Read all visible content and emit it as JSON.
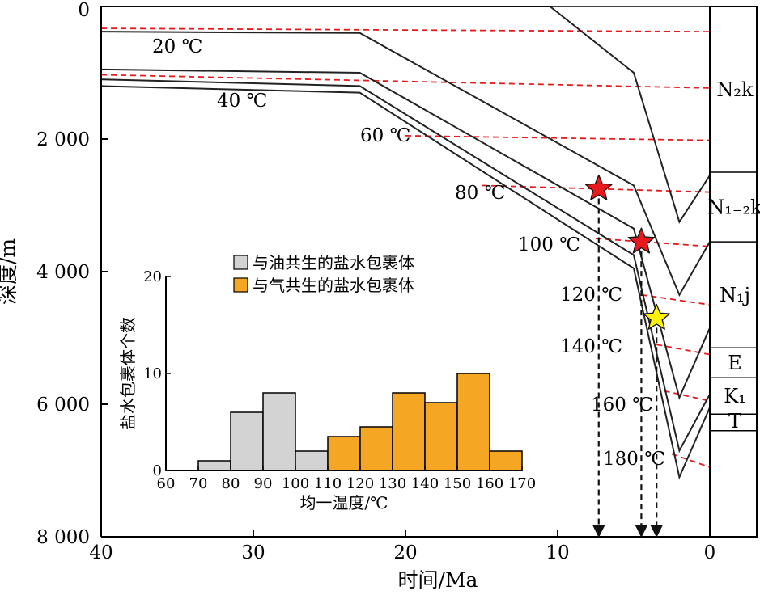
{
  "chart_data": [
    {
      "type": "line",
      "title": "",
      "xlabel": "时间/Ma",
      "ylabel": "深度/m",
      "xlim": [
        40,
        0
      ],
      "ylim": [
        8000,
        0
      ],
      "x_ticks": [
        "40",
        "30",
        "20",
        "10",
        "0"
      ],
      "x_tick_values": [
        40,
        30,
        20,
        10,
        0
      ],
      "y_ticks": [
        "0",
        "2 000",
        "4 000",
        "6 000",
        "8 000"
      ],
      "y_tick_values": [
        0,
        2000,
        4000,
        6000,
        8000
      ],
      "burial_curves": [
        {
          "points": [
            [
              40,
              0
            ],
            [
              10.5,
              0
            ],
            [
              5,
              1000
            ],
            [
              2,
              3250
            ],
            [
              0,
              2550
            ]
          ]
        },
        {
          "points": [
            [
              40,
              380
            ],
            [
              23,
              400
            ],
            [
              5,
              2700
            ],
            [
              2,
              4350
            ],
            [
              0,
              3550
            ]
          ]
        },
        {
          "points": [
            [
              40,
              950
            ],
            [
              23,
              1000
            ],
            [
              5,
              3350
            ],
            [
              2,
              5900
            ],
            [
              0,
              4850
            ]
          ]
        },
        {
          "points": [
            [
              40,
              1100
            ],
            [
              23,
              1200
            ],
            [
              5,
              3750
            ],
            [
              2,
              6700
            ],
            [
              0,
              5850
            ]
          ]
        },
        {
          "points": [
            [
              40,
              1200
            ],
            [
              23,
              1300
            ],
            [
              5,
              3950
            ],
            [
              2,
              7100
            ],
            [
              0,
              6050
            ]
          ]
        }
      ],
      "isotherms": [
        {
          "label": "20 ℃",
          "points": [
            [
              40,
              330
            ],
            [
              0,
              380
            ]
          ]
        },
        {
          "label": "40 ℃",
          "points": [
            [
              40,
              1030
            ],
            [
              0,
              1230
            ]
          ]
        },
        {
          "label": "60 ℃",
          "points": [
            [
              20,
              1950
            ],
            [
              0,
              2020
            ]
          ]
        },
        {
          "label": "80 ℃",
          "points": [
            [
              15,
              2700
            ],
            [
              0,
              2800
            ]
          ]
        },
        {
          "label": "100 ℃",
          "points": [
            [
              7.5,
              3500
            ],
            [
              0,
              3620
            ]
          ]
        },
        {
          "label": "120 ℃",
          "points": [
            [
              4.5,
              4350
            ],
            [
              0,
              4500
            ]
          ]
        },
        {
          "label": "140 ℃",
          "points": [
            [
              3.5,
              5100
            ],
            [
              0,
              5250
            ]
          ]
        },
        {
          "label": "160 ℃",
          "points": [
            [
              3,
              5800
            ],
            [
              0,
              5950
            ]
          ]
        },
        {
          "label": "180 ℃",
          "points": [
            [
              2.5,
              6750
            ],
            [
              0,
              6950
            ]
          ]
        }
      ],
      "markers": [
        {
          "color": "#e8191c",
          "x": 7.3,
          "y": 2750
        },
        {
          "color": "#e8191c",
          "x": 4.5,
          "y": 3550
        },
        {
          "color": "#fff200",
          "x": 3.5,
          "y": 4700
        }
      ],
      "formations": [
        {
          "label": "N₂k",
          "top": 0,
          "bottom": 2500
        },
        {
          "label": "N₁₋₂k",
          "top": 2500,
          "bottom": 3550
        },
        {
          "label": "N₁j",
          "top": 3550,
          "bottom": 5150
        },
        {
          "label": "E",
          "top": 5150,
          "bottom": 5600
        },
        {
          "label": "K₁",
          "top": 5600,
          "bottom": 6150
        },
        {
          "label": "T",
          "top": 6150,
          "bottom": 6400
        }
      ],
      "colors": {
        "curve": "#222222",
        "isotherm": "#e8191c",
        "arrow": "#111111"
      }
    },
    {
      "type": "bar",
      "title": "",
      "xlabel": "均一温度/℃",
      "ylabel": "盐水包裹体个数",
      "xlim": [
        60,
        170
      ],
      "ylim": [
        0,
        20
      ],
      "x_ticks": [
        "60",
        "70",
        "80",
        "90",
        "100",
        "110",
        "120",
        "130",
        "140",
        "150",
        "160",
        "170"
      ],
      "y_ticks": [
        "0",
        "10",
        "20"
      ],
      "legend_position": "top-right",
      "series": [
        {
          "name": "与油共生的盐水包裹体",
          "color": "#d3d3d3",
          "bins": [
            [
              70,
              80,
              1
            ],
            [
              80,
              90,
              6
            ],
            [
              90,
              100,
              8
            ],
            [
              100,
              110,
              2
            ]
          ]
        },
        {
          "name": "与气共生的盐水包裹体",
          "color": "#f5a623",
          "bins": [
            [
              110,
              120,
              3.5
            ],
            [
              120,
              130,
              4.5
            ],
            [
              130,
              140,
              8
            ],
            [
              140,
              150,
              7
            ],
            [
              150,
              160,
              10
            ],
            [
              160,
              170,
              2
            ]
          ]
        }
      ]
    }
  ]
}
